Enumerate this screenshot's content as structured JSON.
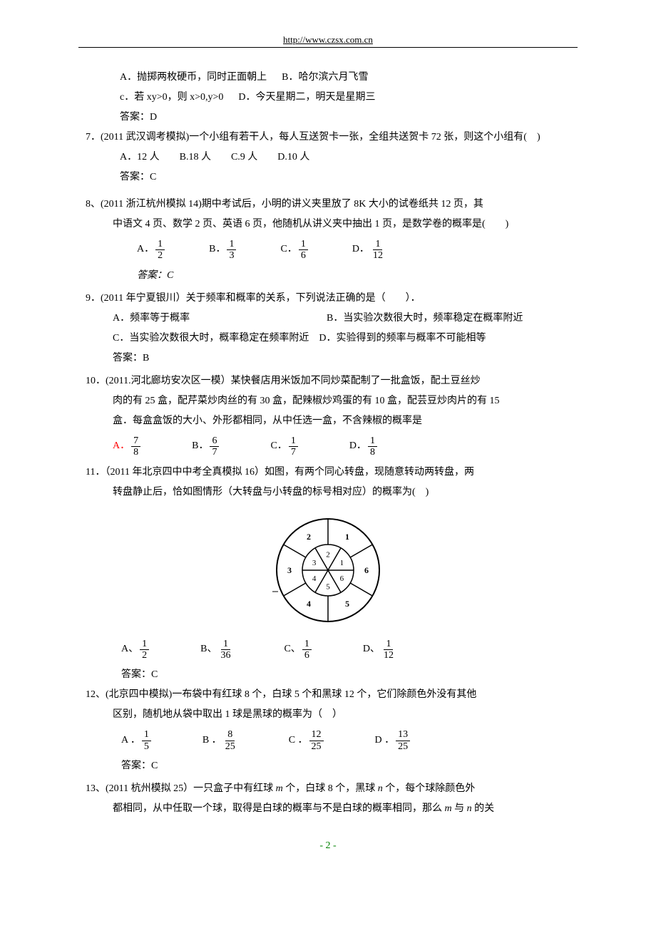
{
  "header_url": "http://www.czsx.com.cn",
  "footer": "- 2 -",
  "q6_opts": {
    "A": "A．抛掷两枚硬币，同时正面朝上",
    "B": "B．哈尔滨六月飞雪",
    "C": "c．若 xy>0，则 x>0,y>0",
    "D": "D．今天星期二，明天是星期三",
    "answer": "答案：D"
  },
  "q7": {
    "stem": "7．(2011 武汉调考模拟)一个小组有若干人，每人互送贺卡一张，全组共送贺卡 72 张，则这个小组有(　)",
    "opts": "A．12 人　　B.18 人　　C.9 人　　D.10 人",
    "answer": "答案：C"
  },
  "q8": {
    "stem1": "8、(2011 浙江杭州模拟 14)期中考试后，小明的讲义夹里放了 8K 大小的试卷纸共 12 页，其",
    "stem2": "中语文 4 页、数学 2 页、英语 6 页，他随机从讲义夹中抽出 1 页，是数学卷的概率是(　　)",
    "opts": [
      {
        "label": "A．",
        "num": "1",
        "den": "2"
      },
      {
        "label": "B．",
        "num": "1",
        "den": "3"
      },
      {
        "label": "C．",
        "num": "1",
        "den": "6"
      },
      {
        "label": "D．",
        "num": "1",
        "den": "12"
      }
    ],
    "answer": "答案：C"
  },
  "q9": {
    "stem": "9．(2011 年宁夏银川）关于频率和概率的关系，下列说法正确的是（　　）．",
    "A": "A．频率等于概率",
    "B": "B．当实验次数很大时，频率稳定在概率附近",
    "C": "C．当实验次数很大时，概率稳定在频率附近",
    "D": "D．实验得到的频率与概率不可能相等",
    "answer": "答案：B"
  },
  "q10": {
    "l1": "10．(2011.河北廊坊安次区一模）某快餐店用米饭加不同炒菜配制了一批盒饭，配土豆丝炒",
    "l2": "肉的有 25 盒，配芹菜炒肉丝的有 30 盒，配辣椒炒鸡蛋的有 10 盒，配芸豆炒肉片的有 15",
    "l3": "盒．每盒盒饭的大小、外形都相同，从中任选一盒，不含辣椒的概率是",
    "opts": [
      {
        "label": "A．",
        "num": "7",
        "den": "8",
        "red": true
      },
      {
        "label": "B．",
        "num": "6",
        "den": "7"
      },
      {
        "label": "C．",
        "num": "1",
        "den": "7"
      },
      {
        "label": "D．",
        "num": "1",
        "den": "8"
      }
    ]
  },
  "q11": {
    "l1": "11．（2011 年北京四中中考全真模拟 16）如图，有两个同心转盘，现随意转动两转盘，两",
    "l2": "转盘静止后，恰如图情形（大转盘与小转盘的标号相对应）的概率为(　)",
    "outer_labels": [
      "2",
      "1",
      "6",
      "5",
      "4",
      "3"
    ],
    "inner_labels": [
      "2",
      "1",
      "6",
      "5",
      "4",
      "3"
    ],
    "opts": [
      {
        "label": "A、",
        "num": "1",
        "den": "2"
      },
      {
        "label": "B、",
        "num": "1",
        "den": "36"
      },
      {
        "label": "C、",
        "num": "1",
        "den": "6"
      },
      {
        "label": "D、",
        "num": "1",
        "den": "12"
      }
    ],
    "answer": "答案：C"
  },
  "q12": {
    "l1": "12、(北京四中模拟)一布袋中有红球 8 个，白球 5 个和黑球 12 个，它们除颜色外没有其他",
    "l2": "区别，随机地从袋中取出 1 球是黑球的概率为（　）",
    "opts": [
      {
        "label": "A ．",
        "num": "1",
        "den": "5"
      },
      {
        "label": "B ．",
        "num": "8",
        "den": "25"
      },
      {
        "label": "C ．",
        "num": "12",
        "den": "25"
      },
      {
        "label": "D ．",
        "num": "13",
        "den": "25"
      }
    ],
    "answer": "答案：C"
  },
  "q13": {
    "l1_a": "13、(2011 杭州模拟 25）一只盒子中有红球 ",
    "l1_m": "m",
    "l1_b": " 个，白球 8 个，黑球 ",
    "l1_n": "n",
    "l1_c": " 个，每个球除颜色外",
    "l2_a": "都相同，从中任取一个球，取得是白球的概率与不是白球的概率相同，那么 ",
    "l2_m": "m",
    "l2_b": " 与 ",
    "l2_n": "n",
    "l2_c": " 的关"
  },
  "spinner": {
    "outer_r": 72,
    "inner_r": 36,
    "stroke": "#000000",
    "background": "#ffffff",
    "font_size": 12
  }
}
